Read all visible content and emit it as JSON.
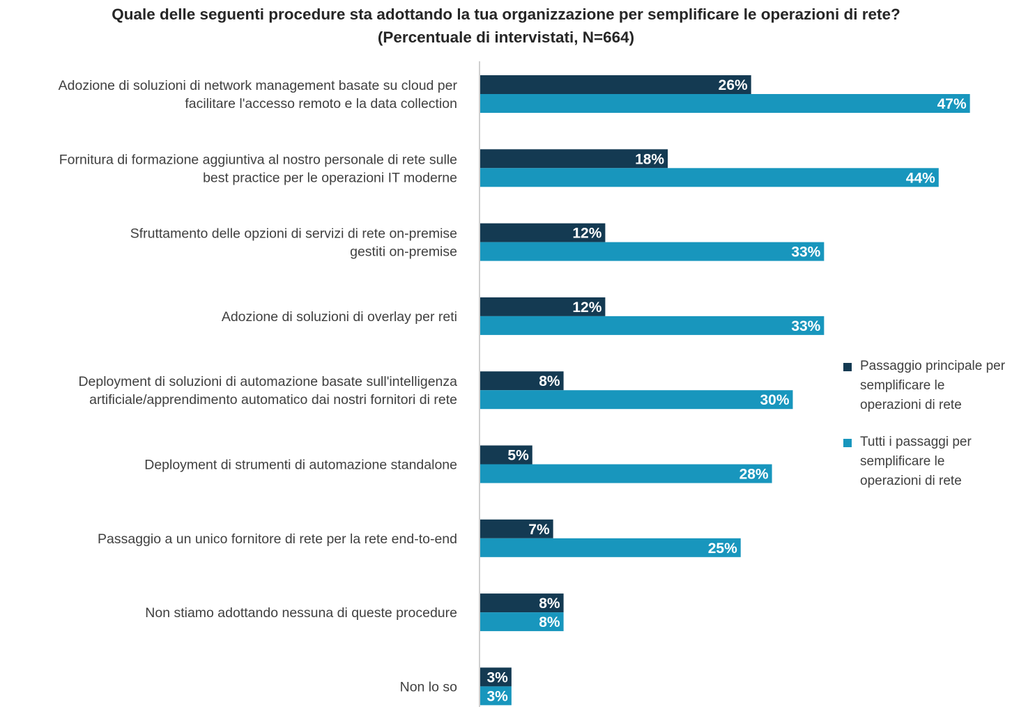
{
  "chart_data": {
    "type": "bar",
    "orientation": "horizontal",
    "title": [
      "Quale delle seguenti procedure sta adottando la tua organizzazione per semplificare le operazioni di rete?",
      "(Percentuale di intervistati, N=664)"
    ],
    "categories": [
      [
        "Adozione di soluzioni di network management basate su cloud per",
        "facilitare l'accesso remoto e la data collection"
      ],
      [
        "Fornitura di formazione aggiuntiva al nostro personale di rete sulle",
        "best practice per le operazioni IT moderne"
      ],
      [
        "Sfruttamento delle opzioni di servizi di rete on-premise",
        "gestiti on-premise"
      ],
      [
        "Adozione di soluzioni di overlay per reti"
      ],
      [
        "Deployment di soluzioni di automazione basate sull'intelligenza",
        "artificiale/apprendimento automatico dai nostri fornitori di rete"
      ],
      [
        "Deployment di strumenti di automazione standalone"
      ],
      [
        "Passaggio a un unico fornitore di rete per la rete end-to-end"
      ],
      [
        "Non stiamo adottando nessuna di queste procedure"
      ],
      [
        "Non lo so"
      ]
    ],
    "series": [
      {
        "name": "Passaggio principale per semplificare le operazioni di rete",
        "color": "#143a52",
        "values": [
          26,
          18,
          12,
          12,
          8,
          5,
          7,
          8,
          3
        ],
        "labels": [
          "26%",
          "18%",
          "12%",
          "12%",
          "8%",
          "5%",
          "7%",
          "8%",
          "3%"
        ]
      },
      {
        "name": "Tutti i passaggi per semplificare le operazioni di rete",
        "color": "#1896bd",
        "values": [
          47,
          44,
          33,
          33,
          30,
          28,
          25,
          8,
          3
        ],
        "labels": [
          "47%",
          "44%",
          "33%",
          "33%",
          "30%",
          "28%",
          "25%",
          "8%",
          "3%"
        ]
      }
    ],
    "xlim": [
      0,
      50
    ],
    "grid": false,
    "legend_position": "right"
  }
}
